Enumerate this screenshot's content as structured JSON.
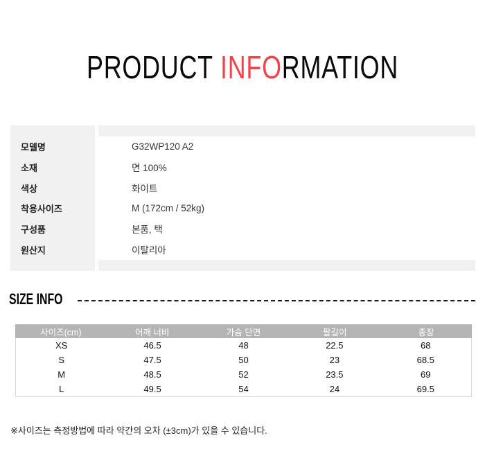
{
  "title": {
    "part1": "PRODUCT ",
    "highlight": "INFO",
    "part2": "RMATION",
    "highlight_color": "#f4434b"
  },
  "product_info": {
    "rows": [
      {
        "label": "모델명",
        "value": "G32WP120 A2"
      },
      {
        "label": "소재",
        "value": "면 100%"
      },
      {
        "label": "색상",
        "value": "화이트"
      },
      {
        "label": "착용사이즈",
        "value": "M (172cm / 52kg)"
      },
      {
        "label": "구성품",
        "value": "본품, 택"
      },
      {
        "label": "원산지",
        "value": "이탈리아"
      }
    ]
  },
  "size_info": {
    "heading": "SIZE INFO",
    "table": {
      "header_bg": "#b4b4b4",
      "columns": [
        "사이즈(cm)",
        "어깨 너비",
        "가슴 단면",
        "팔길이",
        "총장"
      ],
      "rows": [
        [
          "XS",
          "46.5",
          "48",
          "22.5",
          "68"
        ],
        [
          "S",
          "47.5",
          "50",
          "23",
          "68.5"
        ],
        [
          "M",
          "48.5",
          "52",
          "23.5",
          "69"
        ],
        [
          "L",
          "49.5",
          "54",
          "24",
          "69.5"
        ]
      ]
    },
    "footnote": "※사이즈는 측정방법에 따라 약간의 오차 (±3cm)가 있을 수 있습니다."
  }
}
